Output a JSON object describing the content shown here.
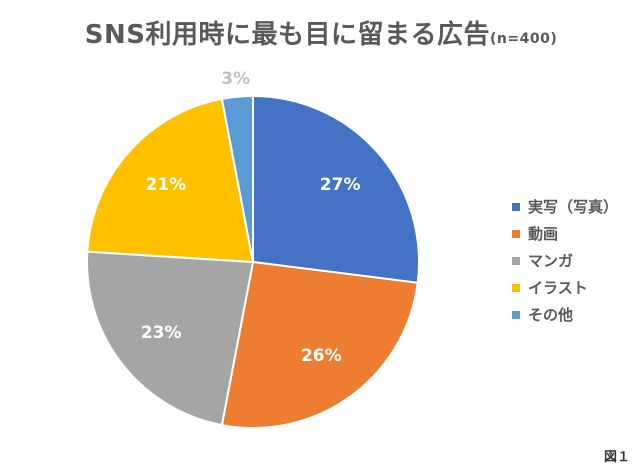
{
  "title": "SNS利用時に最も目に留まる広告",
  "subtitle": "(n=400)",
  "figure_label": "図１",
  "chart_data": {
    "type": "pie",
    "title": "SNS利用時に最も目に留まる広告",
    "subtitle": "(n=400)",
    "categories": [
      "実写（写真）",
      "動画",
      "マンガ",
      "イラスト",
      "その他"
    ],
    "values": [
      27,
      26,
      23,
      21,
      3
    ],
    "labels": [
      "27%",
      "26%",
      "23%",
      "21%",
      "3%"
    ],
    "colors": [
      "#4472C4",
      "#ED7D31",
      "#A5A5A5",
      "#FFC000",
      "#5B9BD5"
    ],
    "label_colors": [
      "#ffffff",
      "#ffffff",
      "#ffffff",
      "#ffffff",
      "#BFBFBF"
    ],
    "legend_position": "right",
    "start": "12 o'clock, clockwise"
  }
}
